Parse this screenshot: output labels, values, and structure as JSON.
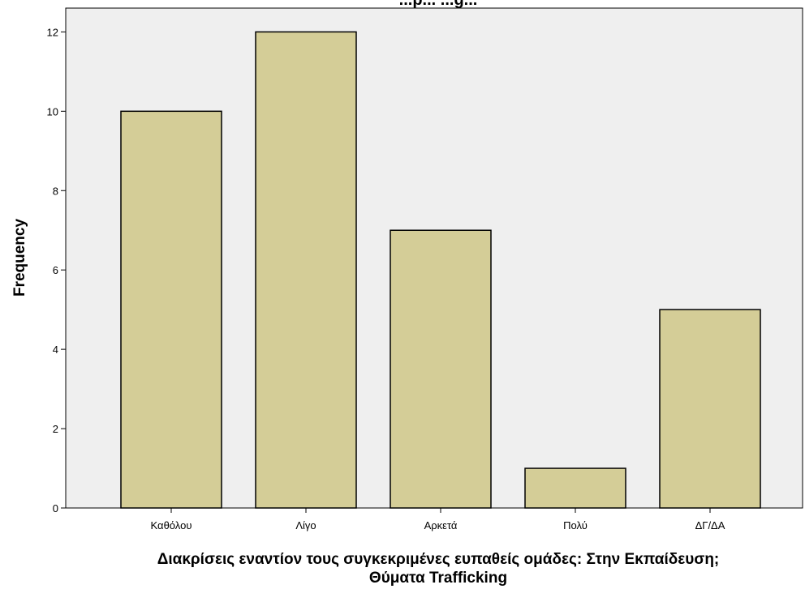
{
  "chart_data": {
    "type": "bar",
    "title": "...p... ...g...",
    "xlabel_line1": "Διακρίσεις εναντίον τους συγκεκριμένες ευπαθείς ομάδες: Στην Εκπαίδευση;",
    "xlabel_line2": "Θύματα Trafficking",
    "ylabel": "Frequency",
    "categories": [
      "Καθόλου",
      "Λίγο",
      "Αρκετά",
      "Πολύ",
      "ΔΓ/ΔΑ"
    ],
    "values": [
      10,
      12,
      7,
      1,
      5
    ],
    "ylim": [
      0,
      12.6
    ],
    "yticks": [
      0,
      2,
      4,
      6,
      8,
      10,
      12
    ],
    "grid": false,
    "colors": {
      "bar_fill": "#d4cd97",
      "bar_stroke": "#000000",
      "plot_background": "#efefef",
      "axis": "#000000"
    }
  }
}
